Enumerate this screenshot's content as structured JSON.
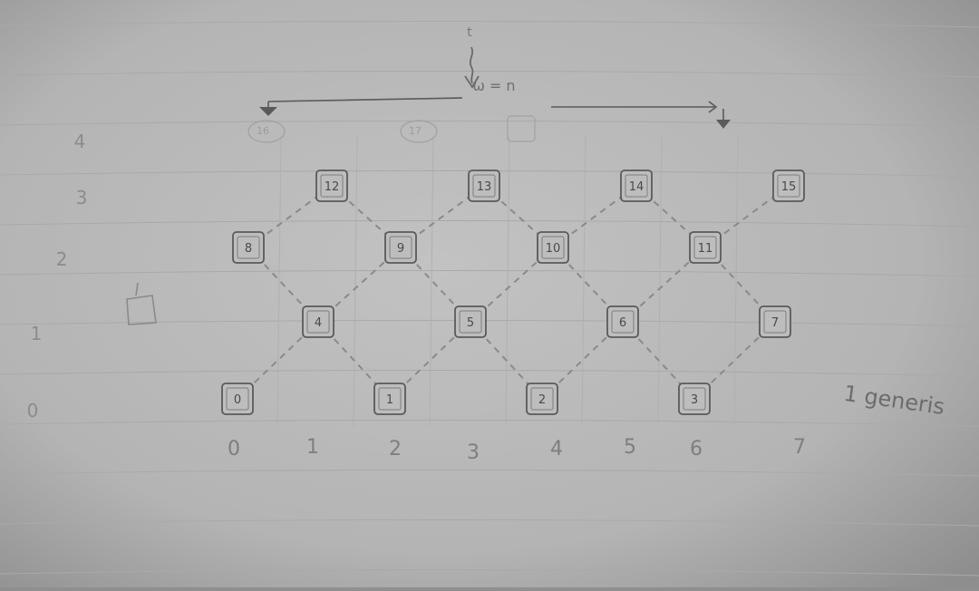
{
  "top_marker": "t",
  "top_label": "ω = n",
  "row_labels": [
    "0",
    "1",
    "2",
    "3",
    "4"
  ],
  "column_labels": [
    "0",
    "1",
    "2",
    "3",
    "4",
    "5",
    "6",
    "7"
  ],
  "side_note": "1 generis",
  "nodes": [
    {
      "id": "n0",
      "label": "0",
      "row": 0,
      "col": 0.0
    },
    {
      "id": "n1",
      "label": "1",
      "row": 0,
      "col": 2.0
    },
    {
      "id": "n2",
      "label": "2",
      "row": 0,
      "col": 4.0
    },
    {
      "id": "n3",
      "label": "3",
      "row": 0,
      "col": 6.0
    },
    {
      "id": "n4",
      "label": "4",
      "row": 1,
      "col": 1.0
    },
    {
      "id": "n5",
      "label": "5",
      "row": 1,
      "col": 3.0
    },
    {
      "id": "n6",
      "label": "6",
      "row": 1,
      "col": 5.0
    },
    {
      "id": "n7",
      "label": "7",
      "row": 1,
      "col": 7.0
    },
    {
      "id": "n8",
      "label": "8",
      "row": 2,
      "col": 0.0
    },
    {
      "id": "n9",
      "label": "9",
      "row": 2,
      "col": 2.0
    },
    {
      "id": "n10",
      "label": "10",
      "row": 2,
      "col": 4.0
    },
    {
      "id": "n11",
      "label": "11",
      "row": 2,
      "col": 6.0
    },
    {
      "id": "n12",
      "label": "12",
      "row": 3,
      "col": 1.0
    },
    {
      "id": "n13",
      "label": "13",
      "row": 3,
      "col": 3.0
    },
    {
      "id": "n14",
      "label": "14",
      "row": 3,
      "col": 5.0
    },
    {
      "id": "n15",
      "label": "15",
      "row": 3,
      "col": 7.0
    },
    {
      "id": "n16",
      "label": "16",
      "row": 4,
      "col": 0.0
    },
    {
      "id": "n17",
      "label": "17",
      "row": 4,
      "col": 2.0
    }
  ],
  "edges": [
    [
      "n0",
      "n4"
    ],
    [
      "n4",
      "n1"
    ],
    [
      "n1",
      "n5"
    ],
    [
      "n5",
      "n2"
    ],
    [
      "n2",
      "n6"
    ],
    [
      "n6",
      "n3"
    ],
    [
      "n3",
      "n7"
    ],
    [
      "n8",
      "n4"
    ],
    [
      "n4",
      "n9"
    ],
    [
      "n9",
      "n5"
    ],
    [
      "n5",
      "n10"
    ],
    [
      "n10",
      "n6"
    ],
    [
      "n6",
      "n11"
    ],
    [
      "n11",
      "n7"
    ],
    [
      "n8",
      "n12"
    ],
    [
      "n12",
      "n9"
    ],
    [
      "n9",
      "n13"
    ],
    [
      "n13",
      "n10"
    ],
    [
      "n10",
      "n14"
    ],
    [
      "n14",
      "n11"
    ],
    [
      "n11",
      "n15"
    ]
  ],
  "colors": {
    "paper": "#b9b9b9",
    "pencil": "#5a5a5a",
    "faint": "#8a8a8a",
    "rule": "#a9a9a9"
  }
}
